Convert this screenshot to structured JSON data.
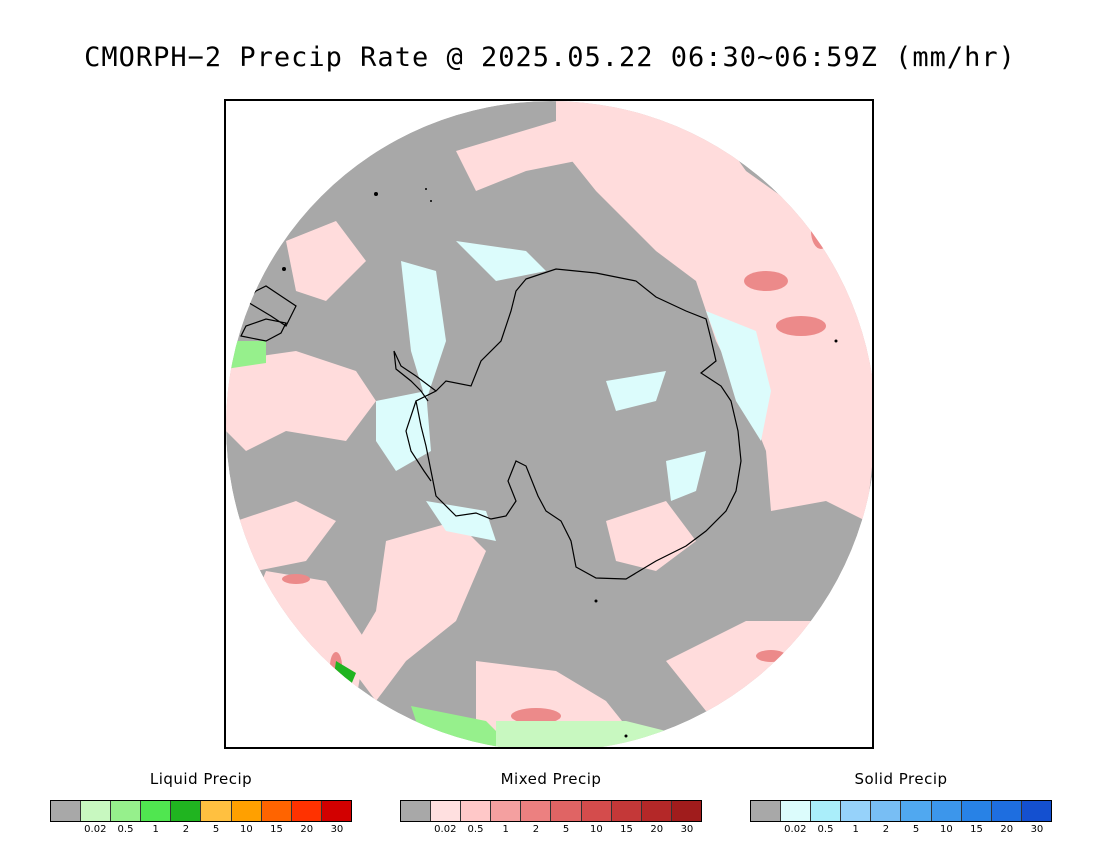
{
  "title": "CMORPH−2 Precip Rate @ 2025.05.22 06:30~06:59Z (mm/hr)",
  "map": {
    "projection": "south-polar-stereographic",
    "background_no_data": "#ffffff",
    "no_precip_color": "#a8a8a8",
    "coastline_color": "#000000"
  },
  "legends": [
    {
      "title": "Liquid Precip",
      "colors": [
        "#a8a8a8",
        "#c8f8c0",
        "#96f08c",
        "#50e650",
        "#20b420",
        "#ffc040",
        "#ffa000",
        "#ff6400",
        "#ff3200",
        "#d20000"
      ],
      "ticks": [
        "",
        "0.02",
        "0.5",
        "1",
        "2",
        "5",
        "10",
        "15",
        "20",
        "30"
      ]
    },
    {
      "title": "Mixed Precip",
      "colors": [
        "#a8a8a8",
        "#ffe0e0",
        "#ffc8c8",
        "#f4a0a0",
        "#ec8080",
        "#e06464",
        "#d44c4c",
        "#c43838",
        "#b42828",
        "#a01c1c"
      ],
      "ticks": [
        "",
        "0.02",
        "0.5",
        "1",
        "2",
        "5",
        "10",
        "15",
        "20",
        "30"
      ]
    },
    {
      "title": "Solid Precip",
      "colors": [
        "#a8a8a8",
        "#dcfcfc",
        "#aaeefa",
        "#96d2fa",
        "#78bef4",
        "#50a8f0",
        "#3c96eb",
        "#2882e6",
        "#1e6ee0",
        "#1450d0"
      ],
      "ticks": [
        "",
        "0.02",
        "0.5",
        "1",
        "2",
        "5",
        "10",
        "15",
        "20",
        "30"
      ]
    }
  ]
}
